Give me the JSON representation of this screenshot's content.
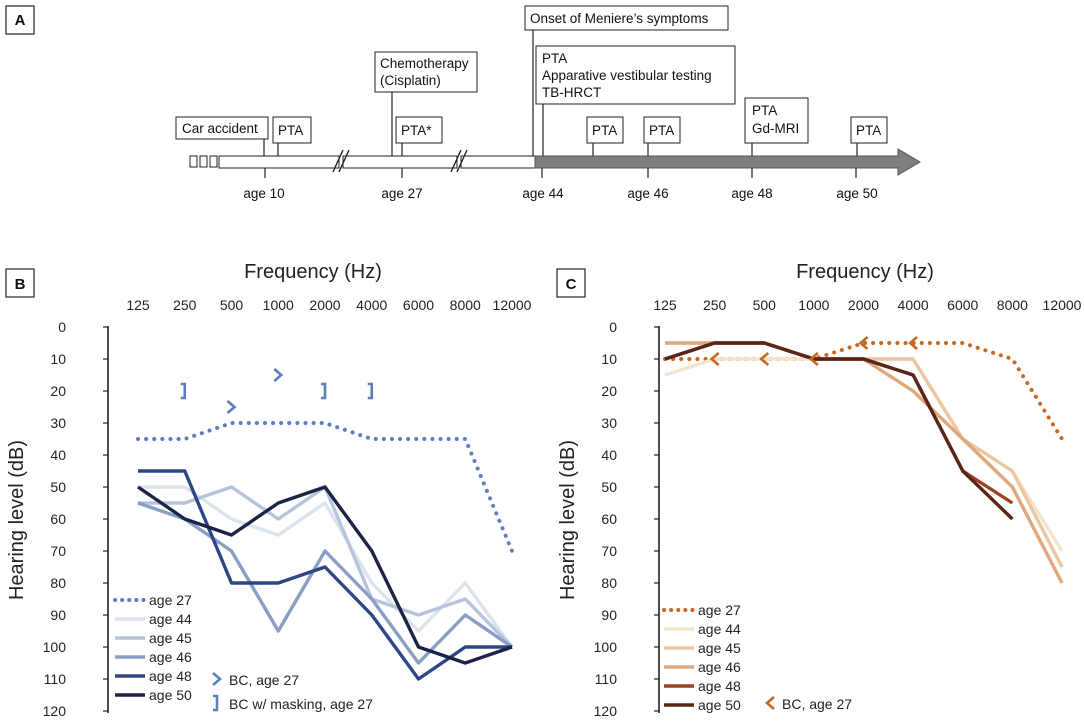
{
  "panelA": {
    "label": "A",
    "ages": [
      "age 10",
      "age 27",
      "age 44",
      "age 46",
      "age 48",
      "age 50"
    ],
    "events": [
      {
        "lines": [
          "Car accident"
        ]
      },
      {
        "lines": [
          "PTA"
        ]
      },
      {
        "lines": [
          "Chemotherapy",
          "(Cisplatin)"
        ]
      },
      {
        "lines": [
          "PTA*"
        ]
      },
      {
        "lines": [
          "Onset of Meniere’s symptoms"
        ]
      },
      {
        "lines": [
          "PTA",
          "Apparative vestibular testing",
          "TB-HRCT"
        ]
      },
      {
        "lines": [
          "PTA"
        ]
      },
      {
        "lines": [
          "PTA"
        ]
      },
      {
        "lines": [
          "PTA",
          "Gd-MRI"
        ]
      },
      {
        "lines": [
          "PTA"
        ]
      }
    ]
  },
  "colors": {
    "B": {
      "age27": "#5b7fba",
      "age44": "#dbe3ee",
      "age45": "#b5c3db",
      "age46": "#8a9dc2",
      "age48": "#2d4686",
      "age50": "#1b2447",
      "bc": "#5b7fba"
    },
    "C": {
      "age27": "#c8681f",
      "age44": "#f6e3cf",
      "age45": "#edc6a0",
      "age46": "#dea77d",
      "age48": "#9b4325",
      "age50": "#5a2617",
      "bc": "#c8681f"
    },
    "timeline_arrow": "#7f7f7f"
  },
  "chart_data": [
    {
      "panel": "B",
      "type": "line",
      "title": "Frequency (Hz)",
      "ylabel": "Hearing level (dB)",
      "categories": [
        "125",
        "250",
        "500",
        "1000",
        "2000",
        "4000",
        "6000",
        "8000",
        "12000"
      ],
      "yticks": [
        "0",
        "10",
        "20",
        "30",
        "40",
        "50",
        "60",
        "70",
        "80",
        "90",
        "100",
        "110",
        "120"
      ],
      "ylim": [
        0,
        120
      ],
      "y_inverted": true,
      "series": [
        {
          "name": "age 27",
          "style": "dotted",
          "values": [
            35,
            35,
            30,
            30,
            30,
            35,
            35,
            35,
            70
          ]
        },
        {
          "name": "age 44",
          "style": "solid",
          "values": [
            50,
            50,
            60,
            65,
            55,
            80,
            95,
            80,
            100
          ]
        },
        {
          "name": "age 45",
          "style": "solid",
          "values": [
            55,
            55,
            50,
            60,
            50,
            85,
            90,
            85,
            100
          ]
        },
        {
          "name": "age 46",
          "style": "solid",
          "values": [
            55,
            60,
            70,
            95,
            70,
            85,
            105,
            90,
            100
          ]
        },
        {
          "name": "age 48",
          "style": "solid",
          "values": [
            45,
            45,
            80,
            80,
            75,
            90,
            110,
            100,
            100
          ]
        },
        {
          "name": "age 50",
          "style": "solid",
          "values": [
            50,
            60,
            65,
            55,
            50,
            70,
            100,
            105,
            100
          ]
        }
      ],
      "bc_markers": [
        {
          "kind": "unmasked",
          "x": "500",
          "y": 25
        },
        {
          "kind": "unmasked",
          "x": "1000",
          "y": 15
        },
        {
          "kind": "masked",
          "x": "250",
          "y": 20
        },
        {
          "kind": "masked",
          "x": "2000",
          "y": 20
        },
        {
          "kind": "masked",
          "x": "4000",
          "y": 20
        }
      ],
      "legend": [
        "age 27",
        "age 44",
        "age 45",
        "age 46",
        "age 48",
        "age 50"
      ],
      "bc_legend": [
        "BC, age 27",
        "BC w/ masking, age 27"
      ]
    },
    {
      "panel": "C",
      "type": "line",
      "title": "Frequency (Hz)",
      "ylabel": "Hearing level (dB)",
      "categories": [
        "125",
        "250",
        "500",
        "1000",
        "2000",
        "4000",
        "6000",
        "8000",
        "12000"
      ],
      "yticks": [
        "0",
        "10",
        "20",
        "30",
        "40",
        "50",
        "60",
        "70",
        "80",
        "90",
        "100",
        "110",
        "120"
      ],
      "ylim": [
        0,
        120
      ],
      "y_inverted": true,
      "series": [
        {
          "name": "age 27",
          "style": "dotted",
          "values": [
            10,
            10,
            10,
            10,
            5,
            5,
            5,
            10,
            35
          ]
        },
        {
          "name": "age 44",
          "style": "solid",
          "values": [
            15,
            10,
            10,
            10,
            10,
            10,
            35,
            45,
            70
          ]
        },
        {
          "name": "age 45",
          "style": "solid",
          "values": [
            5,
            5,
            5,
            10,
            10,
            10,
            35,
            45,
            75
          ]
        },
        {
          "name": "age 46",
          "style": "solid",
          "values": [
            5,
            5,
            5,
            10,
            10,
            20,
            35,
            50,
            80
          ]
        },
        {
          "name": "age 48",
          "style": "solid",
          "values": [
            10,
            5,
            5,
            10,
            10,
            15,
            45,
            55,
            null
          ]
        },
        {
          "name": "age 50",
          "style": "solid",
          "values": [
            10,
            5,
            5,
            10,
            10,
            15,
            45,
            60,
            null
          ]
        }
      ],
      "bc_markers": [
        {
          "kind": "unmasked",
          "x": "250",
          "y": 10
        },
        {
          "kind": "unmasked",
          "x": "500",
          "y": 10
        },
        {
          "kind": "unmasked",
          "x": "1000",
          "y": 10
        },
        {
          "kind": "unmasked",
          "x": "2000",
          "y": 5
        },
        {
          "kind": "unmasked",
          "x": "4000",
          "y": 5
        }
      ],
      "legend": [
        "age 27",
        "age 44",
        "age 45",
        "age 46",
        "age 48",
        "age 50"
      ],
      "bc_legend": [
        "BC, age 27"
      ]
    }
  ]
}
